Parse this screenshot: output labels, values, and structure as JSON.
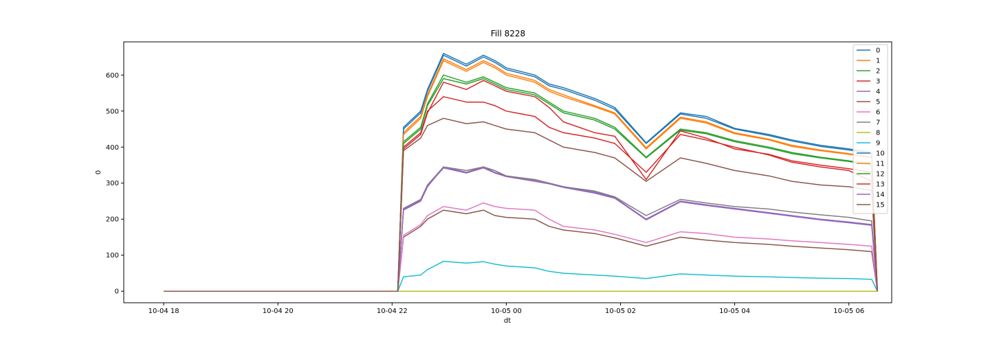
{
  "chart_data": {
    "type": "line",
    "title": "Fill 8228",
    "xlabel": "dt",
    "ylabel": "0",
    "x_tick_labels": [
      "10-04 18",
      "10-04 20",
      "10-04 22",
      "10-05 00",
      "10-05 02",
      "10-05 04",
      "10-05 06"
    ],
    "x_tick_hours": [
      18,
      20,
      22,
      24,
      26,
      28,
      30
    ],
    "x_unit": "hours since 10-04 00:00",
    "xlim": [
      17.3,
      30.75
    ],
    "y_ticks": [
      0,
      100,
      200,
      300,
      400,
      500,
      600
    ],
    "ylim": [
      -32,
      692
    ],
    "grid": false,
    "legend_position": "upper right",
    "x_hours": [
      18.0,
      22.1,
      22.2,
      22.5,
      22.62,
      22.9,
      23.3,
      23.6,
      23.8,
      24.0,
      24.5,
      24.75,
      25.0,
      25.55,
      25.9,
      26.45,
      27.05,
      27.5,
      28.0,
      28.6,
      29.0,
      29.5,
      30.0,
      30.4,
      30.5
    ],
    "series": [
      {
        "name": "0",
        "color": "#1f77b4",
        "values": [
          0,
          0,
          455,
          500,
          560,
          660,
          630,
          655,
          640,
          620,
          600,
          575,
          565,
          535,
          510,
          412,
          495,
          485,
          452,
          435,
          420,
          405,
          395,
          385,
          0
        ]
      },
      {
        "name": "1",
        "color": "#ff7f0e",
        "values": [
          0,
          0,
          440,
          485,
          545,
          645,
          615,
          640,
          625,
          605,
          585,
          560,
          545,
          515,
          495,
          398,
          483,
          470,
          440,
          422,
          405,
          392,
          382,
          372,
          0
        ]
      },
      {
        "name": "2",
        "color": "#2ca02c",
        "values": [
          0,
          0,
          415,
          455,
          520,
          600,
          580,
          595,
          580,
          565,
          550,
          525,
          500,
          480,
          455,
          372,
          450,
          440,
          418,
          400,
          385,
          372,
          362,
          352,
          0
        ]
      },
      {
        "name": "3",
        "color": "#d62728",
        "values": [
          0,
          0,
          400,
          440,
          500,
          540,
          525,
          525,
          515,
          500,
          485,
          455,
          440,
          425,
          410,
          330,
          435,
          420,
          400,
          378,
          358,
          345,
          335,
          305,
          0
        ]
      },
      {
        "name": "4",
        "color": "#9467bd",
        "values": [
          0,
          0,
          225,
          250,
          290,
          345,
          330,
          345,
          330,
          320,
          308,
          300,
          290,
          275,
          260,
          200,
          250,
          240,
          230,
          218,
          210,
          200,
          192,
          185,
          0
        ]
      },
      {
        "name": "5",
        "color": "#8c564b",
        "values": [
          0,
          0,
          150,
          180,
          200,
          225,
          215,
          225,
          210,
          205,
          200,
          180,
          170,
          160,
          148,
          125,
          150,
          142,
          135,
          130,
          125,
          120,
          115,
          110,
          0
        ]
      },
      {
        "name": "6",
        "color": "#e377c2",
        "values": [
          0,
          0,
          155,
          185,
          210,
          235,
          225,
          245,
          235,
          230,
          225,
          200,
          180,
          170,
          158,
          135,
          165,
          160,
          150,
          145,
          140,
          135,
          130,
          125,
          0
        ]
      },
      {
        "name": "7",
        "color": "#7f7f7f",
        "values": [
          0,
          0,
          230,
          255,
          295,
          345,
          335,
          345,
          335,
          320,
          310,
          300,
          290,
          278,
          262,
          210,
          255,
          245,
          235,
          228,
          220,
          212,
          205,
          195,
          0
        ]
      },
      {
        "name": "8",
        "color": "#bcbd22",
        "values": [
          0,
          0,
          0,
          0,
          0,
          0,
          0,
          0,
          0,
          0,
          0,
          0,
          0,
          0,
          0,
          0,
          0,
          0,
          0,
          0,
          0,
          0,
          0,
          0,
          0
        ]
      },
      {
        "name": "9",
        "color": "#17becf",
        "values": [
          0,
          0,
          40,
          45,
          60,
          83,
          78,
          82,
          75,
          70,
          65,
          55,
          50,
          45,
          42,
          35,
          48,
          45,
          42,
          40,
          38,
          36,
          35,
          33,
          0
        ]
      },
      {
        "name": "10",
        "color": "#1f77b4",
        "values": [
          0,
          0,
          450,
          495,
          555,
          655,
          625,
          650,
          635,
          615,
          595,
          570,
          560,
          530,
          505,
          410,
          492,
          480,
          450,
          432,
          417,
          402,
          392,
          382,
          0
        ]
      },
      {
        "name": "11",
        "color": "#ff7f0e",
        "values": [
          0,
          0,
          435,
          480,
          540,
          640,
          610,
          635,
          620,
          600,
          580,
          555,
          540,
          512,
          492,
          395,
          480,
          467,
          437,
          420,
          402,
          390,
          380,
          370,
          0
        ]
      },
      {
        "name": "12",
        "color": "#2ca02c",
        "values": [
          0,
          0,
          410,
          450,
          515,
          590,
          575,
          590,
          575,
          560,
          545,
          520,
          495,
          475,
          450,
          370,
          447,
          437,
          415,
          397,
          382,
          370,
          360,
          350,
          0
        ]
      },
      {
        "name": "13",
        "color": "#d62728",
        "values": [
          0,
          0,
          395,
          435,
          495,
          580,
          560,
          585,
          570,
          555,
          540,
          510,
          470,
          440,
          430,
          310,
          445,
          425,
          395,
          380,
          362,
          350,
          340,
          330,
          0
        ]
      },
      {
        "name": "14",
        "color": "#9467bd",
        "values": [
          0,
          0,
          228,
          252,
          292,
          342,
          328,
          342,
          328,
          318,
          305,
          298,
          288,
          272,
          258,
          198,
          248,
          238,
          228,
          216,
          208,
          198,
          190,
          183,
          0
        ]
      },
      {
        "name": "15",
        "color": "#8c564b",
        "values": [
          0,
          0,
          390,
          425,
          460,
          480,
          465,
          470,
          460,
          450,
          440,
          420,
          400,
          385,
          370,
          305,
          370,
          355,
          335,
          320,
          305,
          295,
          290,
          280,
          0
        ]
      }
    ]
  }
}
